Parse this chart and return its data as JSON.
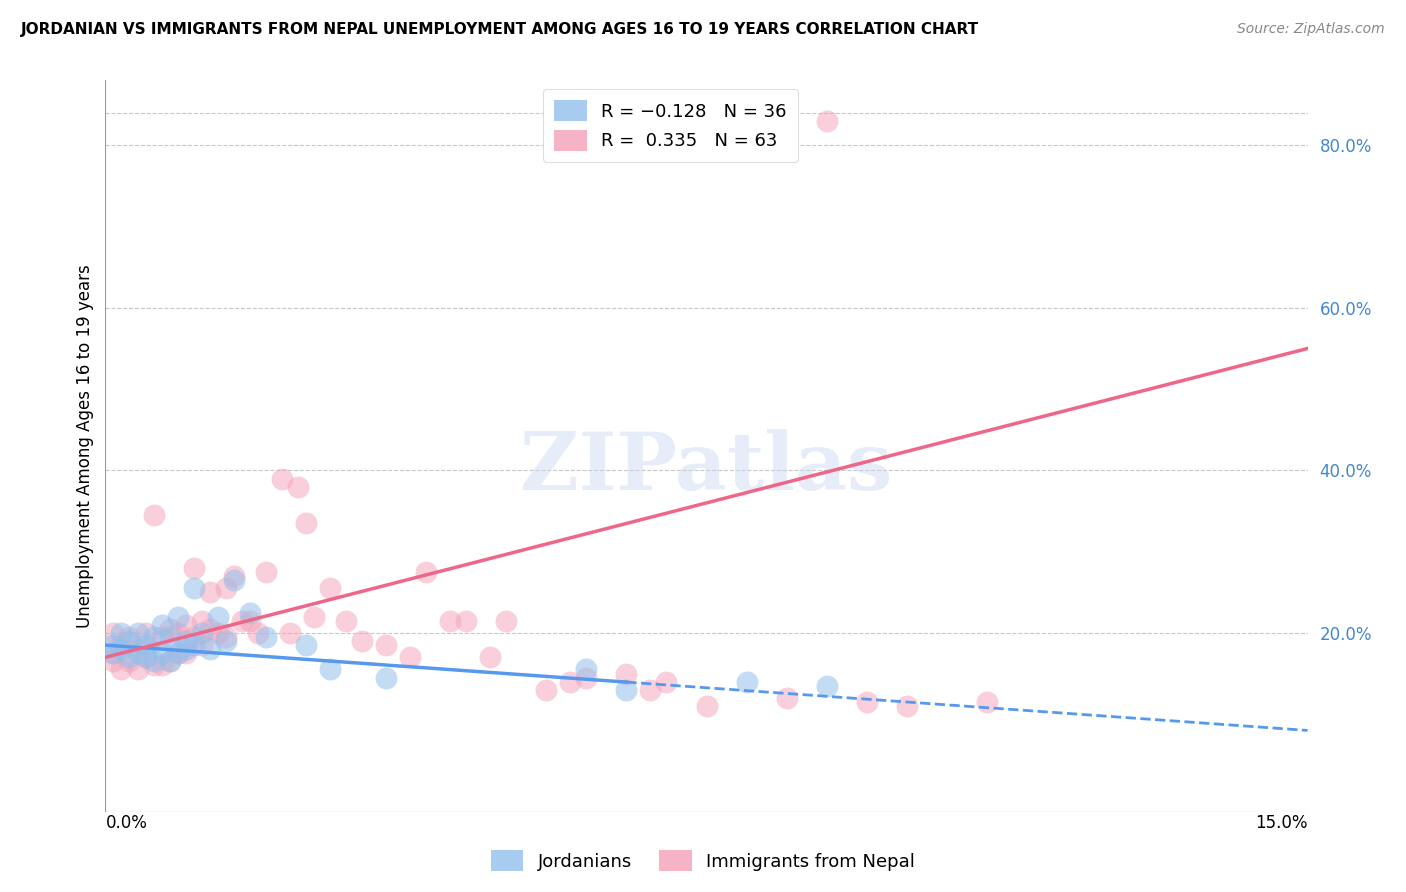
{
  "title": "JORDANIAN VS IMMIGRANTS FROM NEPAL UNEMPLOYMENT AMONG AGES 16 TO 19 YEARS CORRELATION CHART",
  "source": "Source: ZipAtlas.com",
  "ylabel": "Unemployment Among Ages 16 to 19 years",
  "xlabel_bottom_left": "0.0%",
  "xlabel_bottom_right": "15.0%",
  "right_yticks": [
    "80.0%",
    "60.0%",
    "40.0%",
    "20.0%"
  ],
  "right_ytick_positions": [
    0.8,
    0.6,
    0.4,
    0.2
  ],
  "xlim": [
    0.0,
    0.15
  ],
  "ylim": [
    -0.02,
    0.88
  ],
  "jordanian_color": "#92C0EC",
  "nepal_color": "#F4A0B8",
  "background_color": "#ffffff",
  "grid_color": "#c8c8c8",
  "watermark": "ZIPatlas",
  "jordanian_scatter_x": [
    0.001,
    0.001,
    0.002,
    0.002,
    0.003,
    0.003,
    0.004,
    0.004,
    0.005,
    0.005,
    0.006,
    0.006,
    0.007,
    0.007,
    0.008,
    0.008,
    0.009,
    0.009,
    0.01,
    0.01,
    0.011,
    0.011,
    0.012,
    0.013,
    0.014,
    0.015,
    0.016,
    0.018,
    0.02,
    0.025,
    0.028,
    0.035,
    0.06,
    0.065,
    0.08,
    0.09
  ],
  "jordanian_scatter_y": [
    0.185,
    0.175,
    0.2,
    0.18,
    0.19,
    0.17,
    0.2,
    0.175,
    0.185,
    0.17,
    0.195,
    0.165,
    0.21,
    0.175,
    0.195,
    0.165,
    0.22,
    0.175,
    0.18,
    0.19,
    0.255,
    0.185,
    0.2,
    0.18,
    0.22,
    0.19,
    0.265,
    0.225,
    0.195,
    0.185,
    0.155,
    0.145,
    0.155,
    0.13,
    0.14,
    0.135
  ],
  "nepal_scatter_x": [
    0.001,
    0.001,
    0.001,
    0.002,
    0.002,
    0.003,
    0.003,
    0.004,
    0.004,
    0.005,
    0.005,
    0.006,
    0.006,
    0.007,
    0.007,
    0.008,
    0.008,
    0.009,
    0.009,
    0.01,
    0.01,
    0.011,
    0.011,
    0.012,
    0.012,
    0.013,
    0.013,
    0.014,
    0.015,
    0.015,
    0.016,
    0.017,
    0.018,
    0.019,
    0.02,
    0.022,
    0.023,
    0.024,
    0.025,
    0.026,
    0.028,
    0.03,
    0.032,
    0.035,
    0.038,
    0.04,
    0.043,
    0.045,
    0.048,
    0.05,
    0.055,
    0.058,
    0.06,
    0.065,
    0.068,
    0.07,
    0.075,
    0.08,
    0.085,
    0.09,
    0.095,
    0.1,
    0.11
  ],
  "nepal_scatter_y": [
    0.2,
    0.175,
    0.165,
    0.185,
    0.155,
    0.195,
    0.165,
    0.18,
    0.155,
    0.2,
    0.17,
    0.345,
    0.16,
    0.195,
    0.16,
    0.205,
    0.165,
    0.2,
    0.175,
    0.21,
    0.175,
    0.28,
    0.195,
    0.215,
    0.185,
    0.25,
    0.205,
    0.2,
    0.255,
    0.195,
    0.27,
    0.215,
    0.215,
    0.2,
    0.275,
    0.39,
    0.2,
    0.38,
    0.335,
    0.22,
    0.255,
    0.215,
    0.19,
    0.185,
    0.17,
    0.275,
    0.215,
    0.215,
    0.17,
    0.215,
    0.13,
    0.14,
    0.145,
    0.15,
    0.13,
    0.14,
    0.11,
    0.8,
    0.12,
    0.83,
    0.115,
    0.11,
    0.115
  ],
  "jordan_line_color": "#5599EE",
  "nepal_line_color": "#EE6688",
  "jordan_line_solid_end": 0.065,
  "jordan_line_x0": 0.0,
  "jordan_line_y0": 0.185,
  "jordan_line_x1": 0.15,
  "jordan_line_y1": 0.08,
  "nepal_line_x0": 0.0,
  "nepal_line_y0": 0.17,
  "nepal_line_x1": 0.15,
  "nepal_line_y1": 0.55
}
